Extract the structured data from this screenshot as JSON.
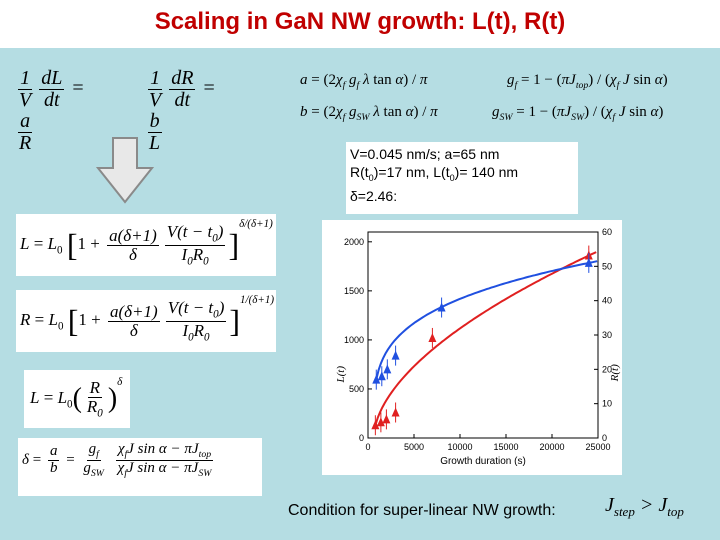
{
  "title": "Scaling in GaN NW growth: L(t), R(t)",
  "colors": {
    "title": "#c00000",
    "panel": "#b5dde3",
    "series_L": "#e02020",
    "series_R": "#2050e0",
    "arrow": "#e8e8e8"
  },
  "params": {
    "line1": "V=0.045 nm/s; a=65 nm",
    "line2a": "R(t",
    "line2b": "0",
    "line2c": ")=17 nm, L(t",
    "line2d": "0",
    "line2e": ")= 140 nm",
    "line3": "δ=2.46:"
  },
  "condition": {
    "text": "Condition for super-linear NW growth:",
    "lhs": "J",
    "lhs_sub": "step",
    "op": ">",
    "rhs": "J",
    "rhs_sub": "top"
  },
  "icons": {
    "down_arrow": "hollow-down-arrow-icon"
  },
  "chart_data": {
    "type": "scatter",
    "xlabel": "Growth duration (s)",
    "xlim": [
      0,
      25000
    ],
    "x_ticks": [
      0,
      5000,
      10000,
      15000,
      20000,
      25000
    ],
    "y_left_ticks": [
      0,
      500,
      1000,
      1500,
      2000
    ],
    "ylim_left": [
      0,
      2100
    ],
    "y_right_ticks": [
      0,
      10,
      20,
      30,
      40,
      50,
      60
    ],
    "ylim_right": [
      0,
      60
    ],
    "y_left_label": "L(t)",
    "y_right_label": "R(t)",
    "series": [
      {
        "axis": "left",
        "marker": "triangle",
        "points": [
          [
            800,
            130
          ],
          [
            1400,
            160
          ],
          [
            2000,
            190
          ],
          [
            3000,
            260
          ],
          [
            7000,
            1020
          ],
          [
            24000,
            1860
          ]
        ]
      },
      {
        "axis": "right",
        "marker": "triangle",
        "points": [
          [
            900,
            17
          ],
          [
            1500,
            18
          ],
          [
            2100,
            20
          ],
          [
            3000,
            24
          ],
          [
            8000,
            38
          ],
          [
            24000,
            51
          ]
        ]
      }
    ]
  }
}
